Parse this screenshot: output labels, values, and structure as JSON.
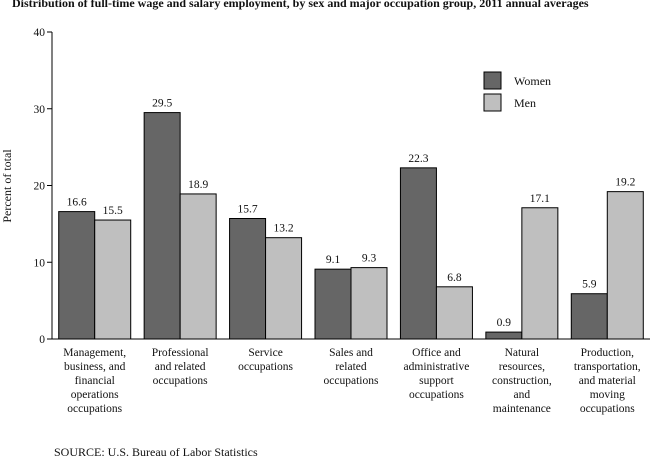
{
  "chart_data": {
    "type": "bar",
    "title": "Distribution of full-time wage and salary employment, by sex and major occupation group, 2011 annual averages",
    "ylabel": "Percent of total",
    "xlabel": "",
    "ylim": [
      0,
      40
    ],
    "yticks": [
      "0",
      "10",
      "20",
      "30",
      "40"
    ],
    "grid": false,
    "legend_position": "top-right",
    "categories": [
      [
        "Management,",
        "business, and",
        "financial",
        "operations",
        "occupations"
      ],
      [
        "Professional",
        "and related",
        "occupations"
      ],
      [
        "Service",
        "occupations"
      ],
      [
        "Sales and",
        "related",
        "occupations"
      ],
      [
        "Office and",
        "administrative",
        "support",
        "occupations"
      ],
      [
        "Natural",
        "resources,",
        "construction,",
        "and",
        "maintenance"
      ],
      [
        "Production,",
        "transportation,",
        "and material",
        "moving",
        "occupations"
      ]
    ],
    "series": [
      {
        "name": "Women",
        "color": "#666666",
        "values": [
          16.6,
          29.5,
          15.7,
          9.1,
          22.3,
          0.9,
          5.9
        ],
        "labels": [
          "16.6",
          "29.5",
          "15.7",
          "9.1",
          "22.3",
          "0.9",
          "5.9"
        ]
      },
      {
        "name": "Men",
        "color": "#bfbfbf",
        "values": [
          15.5,
          18.9,
          13.2,
          9.3,
          6.8,
          17.1,
          19.2
        ],
        "labels": [
          "15.5",
          "18.9",
          "13.2",
          "9.3",
          "6.8",
          "17.1",
          "19.2"
        ]
      }
    ],
    "source": "SOURCE: U.S. Bureau of Labor Statistics"
  }
}
